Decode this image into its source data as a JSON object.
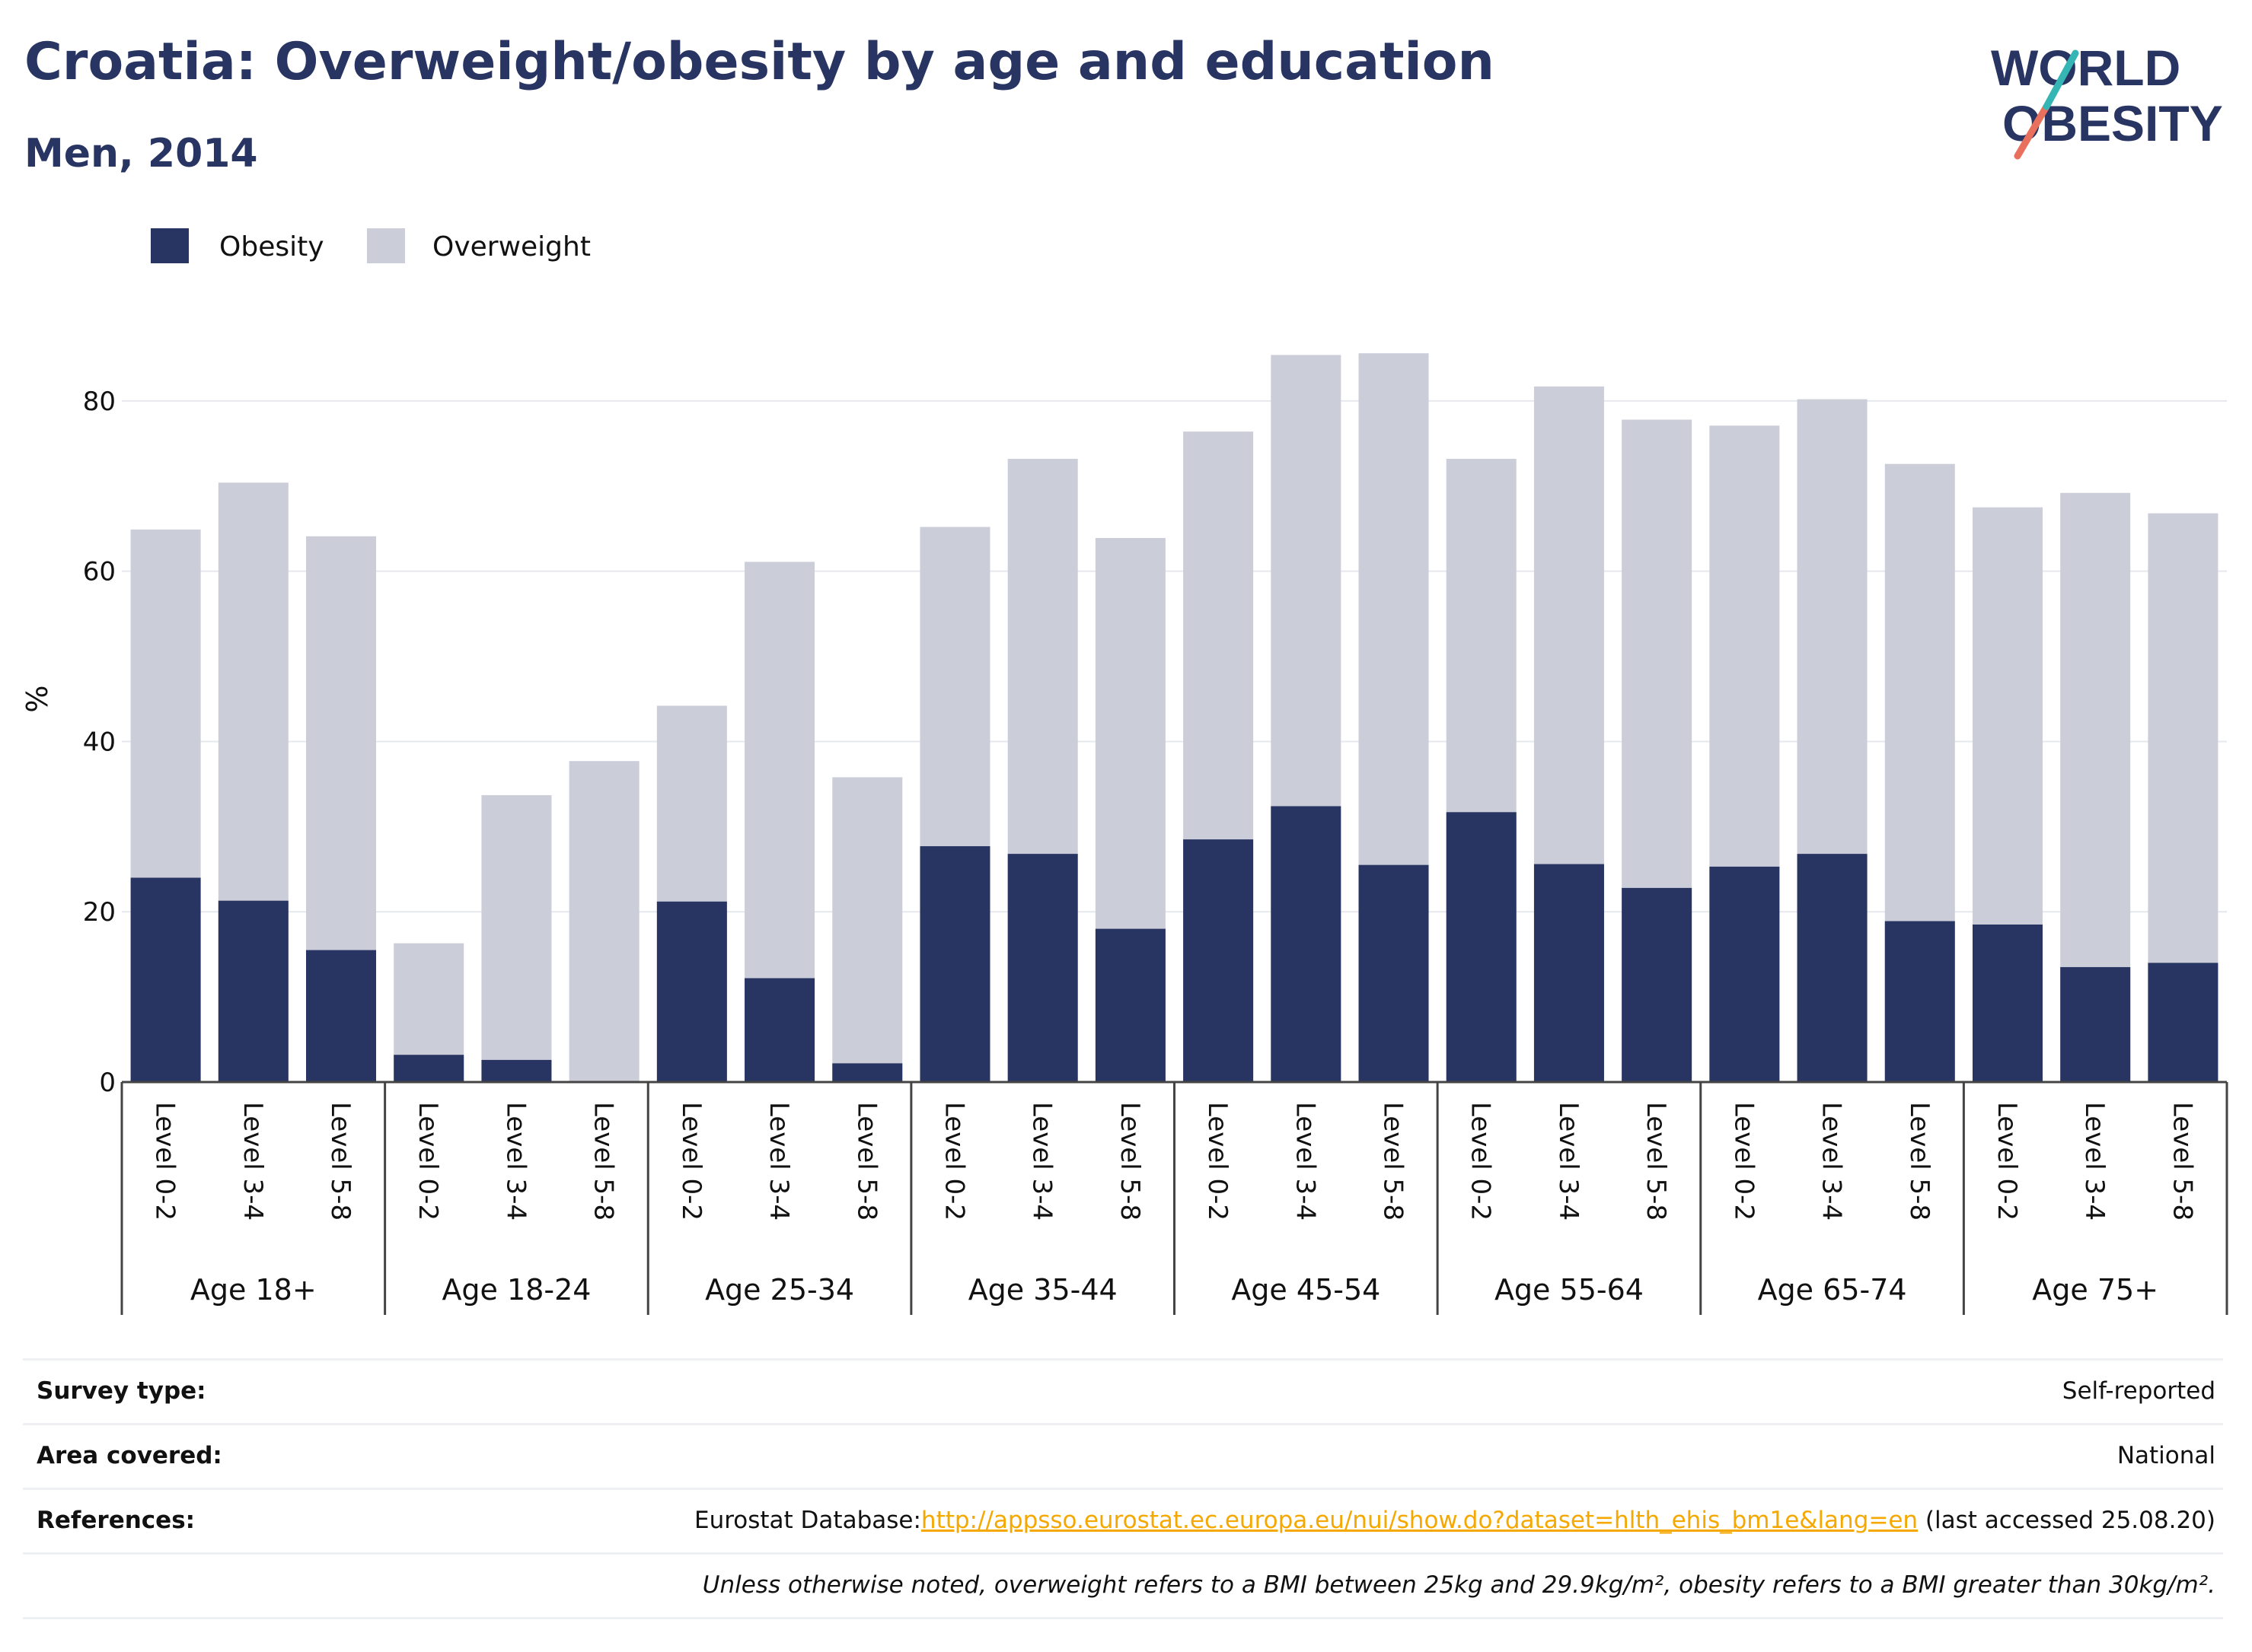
{
  "header": {
    "title": "Croatia: Overweight/obesity by age and education",
    "subtitle": "Men, 2014"
  },
  "logo": {
    "line1": "WORLD",
    "line2": "OBESITY"
  },
  "colors": {
    "obesity": "#283462",
    "overweight": "#cbcdd9",
    "title": "#283462",
    "link": "#f5a800"
  },
  "chart_data": {
    "type": "bar",
    "stacked": false,
    "ylabel": "%",
    "ylim": [
      0,
      90
    ],
    "yticks": [
      0,
      20,
      40,
      60,
      80
    ],
    "grid": true,
    "legend_position": "top-left",
    "legend": [
      "Obesity",
      "Overweight"
    ],
    "groups": [
      "Age 18+",
      "Age 18-24",
      "Age 25-34",
      "Age 35-44",
      "Age 45-54",
      "Age 55-64",
      "Age 65-74",
      "Age 75+"
    ],
    "levels": [
      "Level 0-2",
      "Level 3-4",
      "Level 5-8"
    ],
    "series": [
      {
        "name": "Obesity",
        "values": [
          24.0,
          21.3,
          15.5,
          3.2,
          2.6,
          0.0,
          21.2,
          12.2,
          2.2,
          27.7,
          26.8,
          18.0,
          28.5,
          32.4,
          25.5,
          31.7,
          25.6,
          22.8,
          25.3,
          26.8,
          18.9,
          18.5,
          13.5,
          14.0
        ]
      },
      {
        "name": "Overweight",
        "values": [
          64.9,
          70.4,
          64.1,
          16.3,
          33.7,
          37.7,
          44.2,
          61.1,
          35.8,
          65.2,
          73.2,
          63.9,
          76.4,
          85.4,
          85.6,
          73.2,
          81.7,
          77.8,
          77.1,
          80.2,
          72.6,
          67.5,
          69.2,
          66.8
        ]
      }
    ]
  },
  "info": {
    "survey_label": "Survey type:",
    "survey_value": "Self-reported",
    "area_label": "Area covered:",
    "area_value": "National",
    "references_label": "References:",
    "references_prefix": "Eurostat Database:",
    "references_link": "http://appsso.eurostat.ec.europa.eu/nui/show.do?dataset=hlth_ehis_bm1e&lang=en",
    "references_suffix": " (last accessed 25.08.20)",
    "note": "Unless otherwise noted, overweight refers to a BMI between 25kg and 29.9kg/m², obesity refers to a BMI greater than 30kg/m²."
  }
}
